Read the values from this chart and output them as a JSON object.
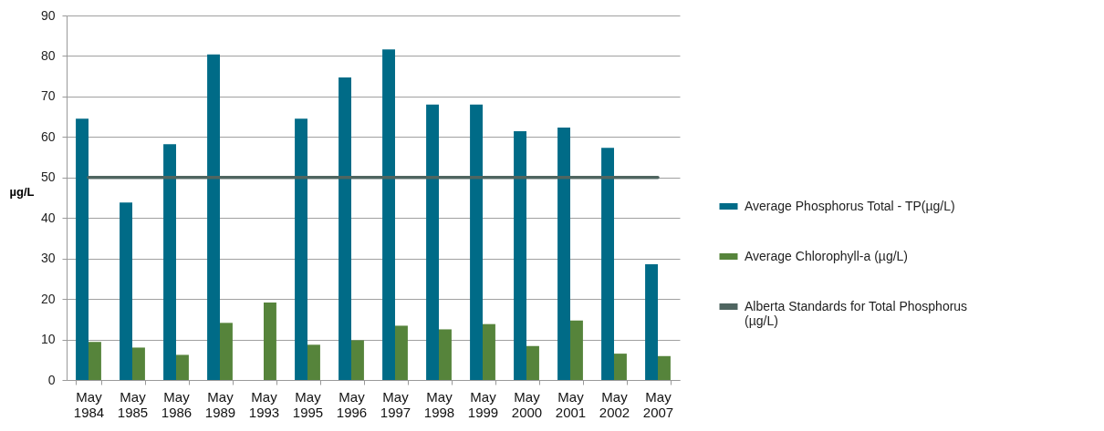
{
  "chart_data": {
    "type": "bar",
    "ylabel": "µg/L",
    "categories": [
      "May 1984",
      "May 1985",
      "May 1986",
      "May 1989",
      "May 1993",
      "May 1995",
      "May 1996",
      "May 1997",
      "May 1998",
      "May 1999",
      "May 2000",
      "May 2001",
      "May 2002",
      "May 2007"
    ],
    "series": [
      {
        "name": "Average Phosphorus  Total - TP(µg/L)",
        "color": "#006b87",
        "values": [
          64.5,
          43.8,
          58.2,
          80.4,
          null,
          64.5,
          74.7,
          81.6,
          68.0,
          68.0,
          61.4,
          62.3,
          57.3,
          28.6
        ]
      },
      {
        "name": "Average Chlorophyll-a (µg/L)",
        "color": "#56843b",
        "values": [
          9.4,
          8.0,
          6.2,
          14.1,
          19.1,
          8.7,
          9.8,
          13.4,
          12.5,
          13.8,
          8.4,
          14.7,
          6.5,
          5.9
        ]
      },
      {
        "name": "Alberta Standards for Total Phosphorus (µg/L)",
        "type": "line",
        "color": "#4f6560",
        "values": [
          50,
          50,
          50,
          50,
          50,
          50,
          50,
          50,
          50,
          50,
          50,
          50,
          50,
          50
        ]
      }
    ],
    "ylim": [
      0,
      90
    ],
    "yticks": [
      0,
      10,
      20,
      30,
      40,
      50,
      60,
      70,
      80,
      90
    ],
    "grid": "y",
    "legend": "right"
  }
}
